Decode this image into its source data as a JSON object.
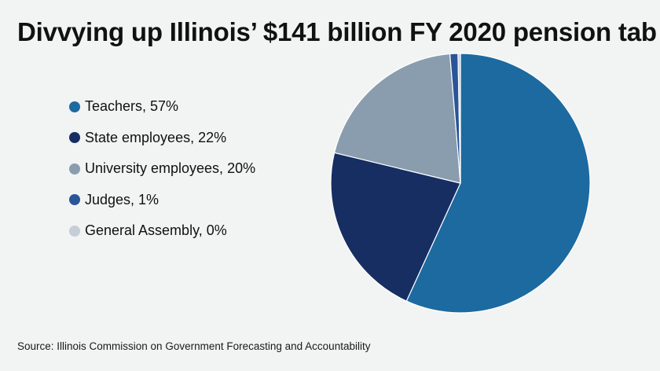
{
  "title": "Divvying up Illinois’ $141 billion FY 2020 pension tab",
  "source": "Source: Illinois Commission on Government Forecasting and Accountability",
  "chart_data": {
    "type": "pie",
    "title": "Divvying up Illinois’ $141 billion FY 2020 pension tab",
    "legend_position": "left",
    "start_angle": "12 o'clock",
    "direction": "clockwise",
    "slices": [
      {
        "label": "Teachers, 57%",
        "name": "Teachers",
        "value": 57,
        "color": "#1c6aa0"
      },
      {
        "label": "State employees, 22%",
        "name": "State employees",
        "value": 22,
        "color": "#172e63"
      },
      {
        "label": "University employees, 20%",
        "name": "University employees",
        "value": 20,
        "color": "#899dae"
      },
      {
        "label": "Judges, 1%",
        "name": "Judges",
        "value": 1,
        "color": "#2a5597"
      },
      {
        "label": "General Assembly, 0%",
        "name": "General Assembly",
        "value": 0.3,
        "color": "#c5ced6"
      }
    ]
  }
}
